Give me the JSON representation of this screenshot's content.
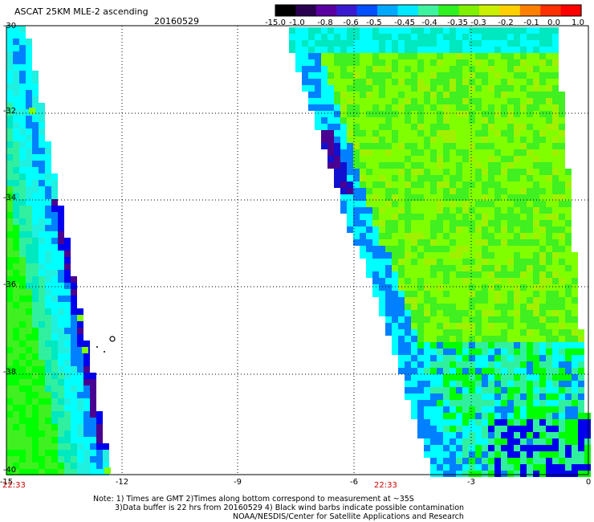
{
  "header": {
    "title": "ASCAT 25KM MLE-2 ascending",
    "date": "20160529"
  },
  "colorbar": {
    "labels": [
      "-15.0",
      "-1.0",
      "-0.8",
      "-0.6",
      "-0.5",
      "-0.45",
      "-0.4",
      "-0.35",
      "-0.3",
      "-0.2",
      "-0.1",
      "0.0",
      "1.0"
    ],
    "colors": [
      "#000000",
      "#2a0050",
      "#5a00a0",
      "#3a1ad0",
      "#0050ff",
      "#00a8ff",
      "#00e8ff",
      "#3ff2a0",
      "#2ff020",
      "#7ff000",
      "#c8f000",
      "#ffd000",
      "#ff8000",
      "#ff3000",
      "#ff0000"
    ]
  },
  "axes": {
    "x_ticks": [
      "-15",
      "-12",
      "-9",
      "-6",
      "-3",
      "0"
    ],
    "y_ticks": [
      "-30",
      "-32",
      "-34",
      "-36",
      "-38",
      "-40"
    ]
  },
  "time_labels": [
    "22:33",
    "22:33"
  ],
  "notes": {
    "line1": "Note: 1) Times are GMT 2)Times along bottom correspond to measurement at ~35S",
    "line2": "3)Data buffer is 22 hrs from 20160529 4) Black wind barbs indicate possible contamination",
    "line3": "NOAA/NESDIS/Center for Satellite Applications and Research"
  }
}
